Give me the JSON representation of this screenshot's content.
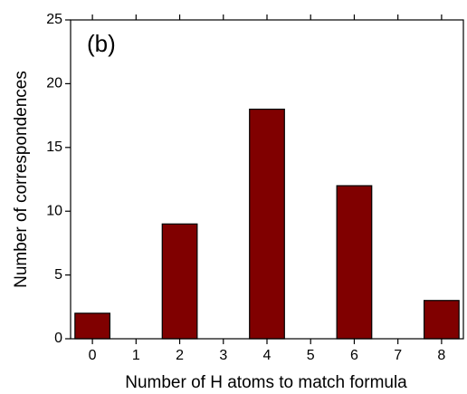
{
  "chart_data": {
    "type": "bar",
    "annotation": "(b)",
    "x_label": "Number of H atoms to match formula",
    "y_label": "Number of correspondences",
    "x": [
      0,
      1,
      2,
      3,
      4,
      5,
      6,
      7,
      8
    ],
    "values": [
      2,
      0,
      9,
      0,
      18,
      0,
      12,
      0,
      3
    ],
    "color": "#800000",
    "xlim": [
      -0.5,
      8.5
    ],
    "xticks": [
      0,
      1,
      2,
      3,
      4,
      5,
      6,
      7,
      8
    ],
    "ylim": [
      0,
      25
    ],
    "yticks": [
      0,
      5,
      10,
      15,
      20,
      25
    ]
  }
}
